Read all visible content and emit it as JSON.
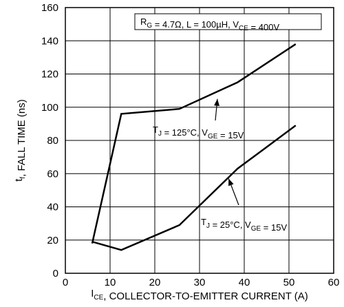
{
  "chart_data": {
    "type": "line",
    "xlabel": "I_CE, COLLECTOR-TO-EMITTER CURRENT (A)",
    "xlabel_parts": {
      "sym": "I",
      "sub": "CE",
      "rest": ", COLLECTOR-TO-EMITTER CURRENT (A)"
    },
    "ylabel": "t_f, FALL TIME (ns)",
    "ylabel_parts": {
      "sym": "t",
      "sub": "f",
      "rest": ", FALL TIME (ns)"
    },
    "xlim": [
      0,
      60
    ],
    "ylim": [
      0,
      160
    ],
    "xticks": [
      0,
      10,
      20,
      30,
      40,
      50,
      60
    ],
    "yticks": [
      0,
      20,
      40,
      60,
      80,
      100,
      120,
      140,
      160
    ],
    "grid": true,
    "condition_box": {
      "text": "R_G = 4.7Ω, L = 100µH, V_CE = 400V",
      "parts": [
        {
          "t": "R",
          "sub": false
        },
        {
          "t": "G",
          "sub": true
        },
        {
          "t": " = 4.7Ω, L = 100µH, V",
          "sub": false
        },
        {
          "t": "CE",
          "sub": true
        },
        {
          "t": " = 400V",
          "sub": false
        }
      ]
    },
    "series": [
      {
        "label": "T_J = 125°C, V_GE = 15V",
        "label_parts": [
          {
            "t": "T",
            "sub": false
          },
          {
            "t": "J",
            "sub": true
          },
          {
            "t": " = 125°C, V",
            "sub": false
          },
          {
            "t": "GE",
            "sub": true
          },
          {
            "t": " = 15V",
            "sub": false
          }
        ],
        "x": [
          6,
          12.5,
          25.5,
          38.5,
          51.5
        ],
        "y": [
          18,
          96,
          99,
          115,
          138
        ]
      },
      {
        "label": "T_J = 25°C, V_GE = 15V",
        "label_parts": [
          {
            "t": "T",
            "sub": false
          },
          {
            "t": "J",
            "sub": true
          },
          {
            "t": " = 25°C, V",
            "sub": false
          },
          {
            "t": "GE",
            "sub": true
          },
          {
            "t": " = 15V",
            "sub": false
          }
        ],
        "x": [
          6,
          12.5,
          25.5,
          38.5,
          51.5
        ],
        "y": [
          19,
          14,
          29,
          63,
          89
        ]
      }
    ]
  }
}
